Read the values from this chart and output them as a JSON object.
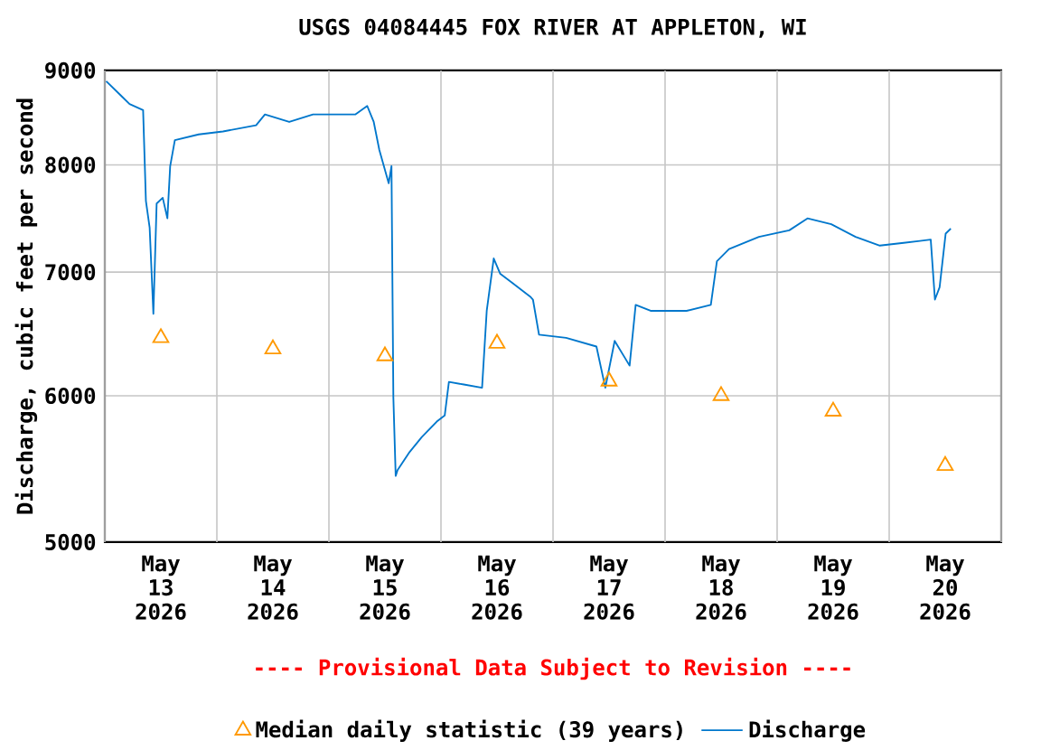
{
  "chart_data": {
    "type": "line",
    "title": "USGS 04084445 FOX RIVER AT APPLETON, WI",
    "ylabel": "Discharge, cubic feet per second",
    "annotations": [
      "---- Provisional Data Subject to Revision ----"
    ],
    "xlim": [
      "2026-05-13T00:00",
      "2026-05-21T00:00"
    ],
    "xticks": [
      {
        "value": "2026-05-13T00:00",
        "label": null
      },
      {
        "value": "2026-05-13T12:00",
        "label": "May 13 2026"
      },
      {
        "value": "2026-05-14T00:00",
        "label": null
      },
      {
        "value": "2026-05-14T12:00",
        "label": "May 14 2026"
      },
      {
        "value": "2026-05-15T00:00",
        "label": null
      },
      {
        "value": "2026-05-15T12:00",
        "label": "May 15 2026"
      },
      {
        "value": "2026-05-16T00:00",
        "label": null
      },
      {
        "value": "2026-05-16T12:00",
        "label": "May 16 2026"
      },
      {
        "value": "2026-05-17T00:00",
        "label": null
      },
      {
        "value": "2026-05-17T12:00",
        "label": "May 17 2026"
      },
      {
        "value": "2026-05-18T00:00",
        "label": null
      },
      {
        "value": "2026-05-18T12:00",
        "label": "May 18 2026"
      },
      {
        "value": "2026-05-19T00:00",
        "label": null
      },
      {
        "value": "2026-05-19T12:00",
        "label": "May 19 2026"
      },
      {
        "value": "2026-05-20T00:00",
        "label": null
      },
      {
        "value": "2026-05-20T12:00",
        "label": "May 20 2026"
      },
      {
        "value": "2026-05-21T00:00",
        "label": null
      }
    ],
    "ylim": [
      5000,
      9000
    ],
    "yticks": [
      5000,
      6000,
      7000,
      8000,
      9000
    ],
    "log": "y",
    "grid": true,
    "legend": "bottom",
    "series": [
      {
        "name": "Median daily statistic (39 years)",
        "type": "scatter",
        "marker": "triangle",
        "color": "#ff9900",
        "x": [
          "2026-05-13T12:00",
          "2026-05-14T12:00",
          "2026-05-15T12:00",
          "2026-05-16T12:00",
          "2026-05-17T12:00",
          "2026-05-18T12:00",
          "2026-05-19T12:00",
          "2026-05-20T12:00"
        ],
        "values": [
          6450,
          6360,
          6305,
          6405,
          6110,
          6000,
          5885,
          5500
        ]
      },
      {
        "name": "Discharge",
        "type": "line",
        "color": "#0077cc",
        "x": [
          "2026-05-13T00:18",
          "2026-05-13T03:24",
          "2026-05-13T05:18",
          "2026-05-13T08:12",
          "2026-05-13T08:48",
          "2026-05-13T09:36",
          "2026-05-13T10:24",
          "2026-05-13T11:06",
          "2026-05-13T12:24",
          "2026-05-13T13:24",
          "2026-05-13T14:00",
          "2026-05-13T15:00",
          "2026-05-13T20:06",
          "2026-05-14T01:18",
          "2026-05-14T08:24",
          "2026-05-14T10:18",
          "2026-05-14T15:30",
          "2026-05-14T20:36",
          "2026-05-15T01:48",
          "2026-05-15T05:42",
          "2026-05-15T08:12",
          "2026-05-15T09:36",
          "2026-05-15T10:48",
          "2026-05-15T12:48",
          "2026-05-15T13:24",
          "2026-05-15T13:48",
          "2026-05-15T14:18",
          "2026-05-15T14:42",
          "2026-05-15T17:18",
          "2026-05-15T19:54",
          "2026-05-15T23:06",
          "2026-05-16T00:48",
          "2026-05-16T01:42",
          "2026-05-16T04:54",
          "2026-05-16T08:48",
          "2026-05-16T09:48",
          "2026-05-16T11:18",
          "2026-05-16T12:42",
          "2026-05-16T15:12",
          "2026-05-16T19:06",
          "2026-05-16T19:42",
          "2026-05-16T21:00",
          "2026-05-17T02:48",
          "2026-05-17T09:18",
          "2026-05-17T11:12",
          "2026-05-17T13:12",
          "2026-05-17T16:24",
          "2026-05-17T17:42",
          "2026-05-17T20:54",
          "2026-05-18T04:36",
          "2026-05-18T09:48",
          "2026-05-18T11:06",
          "2026-05-18T13:42",
          "2026-05-18T20:06",
          "2026-05-19T02:36",
          "2026-05-19T06:30",
          "2026-05-19T11:36",
          "2026-05-19T16:48",
          "2026-05-19T22:00",
          "2026-05-20T03:06",
          "2026-05-20T08:54",
          "2026-05-20T09:48",
          "2026-05-20T10:48",
          "2026-05-20T12:06",
          "2026-05-20T13:12"
        ],
        "values": [
          8880,
          8725,
          8630,
          8565,
          7650,
          7400,
          6645,
          7625,
          7680,
          7485,
          7990,
          8250,
          8310,
          8340,
          8405,
          8520,
          8440,
          8520,
          8520,
          8520,
          8610,
          8440,
          8150,
          7820,
          7990,
          5990,
          5430,
          5470,
          5595,
          5700,
          5810,
          5855,
          6105,
          6085,
          6060,
          6670,
          7120,
          6985,
          6910,
          6790,
          6765,
          6475,
          6450,
          6380,
          6060,
          6425,
          6230,
          6720,
          6670,
          6670,
          6720,
          7095,
          7205,
          7315,
          7375,
          7485,
          7430,
          7315,
          7235,
          7260,
          7290,
          6765,
          6870,
          7345,
          7390
        ]
      }
    ]
  }
}
